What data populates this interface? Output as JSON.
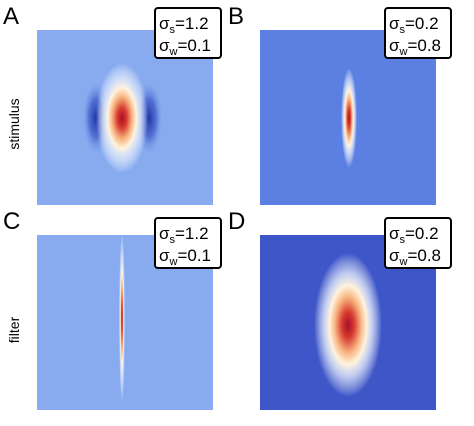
{
  "row_labels": [
    "stimulus",
    "filter"
  ],
  "panels": [
    {
      "letter": "A",
      "params": [
        {
          "symbol": "σ",
          "subscript": "s",
          "text": "=1.2"
        },
        {
          "symbol": "σ",
          "subscript": "w",
          "text": "=0.1"
        }
      ]
    },
    {
      "letter": "B",
      "params": [
        {
          "symbol": "σ",
          "subscript": "s",
          "text": "=0.2"
        },
        {
          "symbol": "σ",
          "subscript": "w",
          "text": "=0.8"
        }
      ]
    },
    {
      "letter": "C",
      "params": [
        {
          "symbol": "σ",
          "subscript": "s",
          "text": "=1.2"
        },
        {
          "symbol": "σ",
          "subscript": "w",
          "text": "=0.1"
        }
      ]
    },
    {
      "letter": "D",
      "params": [
        {
          "symbol": "σ",
          "subscript": "s",
          "text": "=0.2"
        },
        {
          "symbol": "σ",
          "subscript": "w",
          "text": "=0.8"
        }
      ]
    }
  ]
}
